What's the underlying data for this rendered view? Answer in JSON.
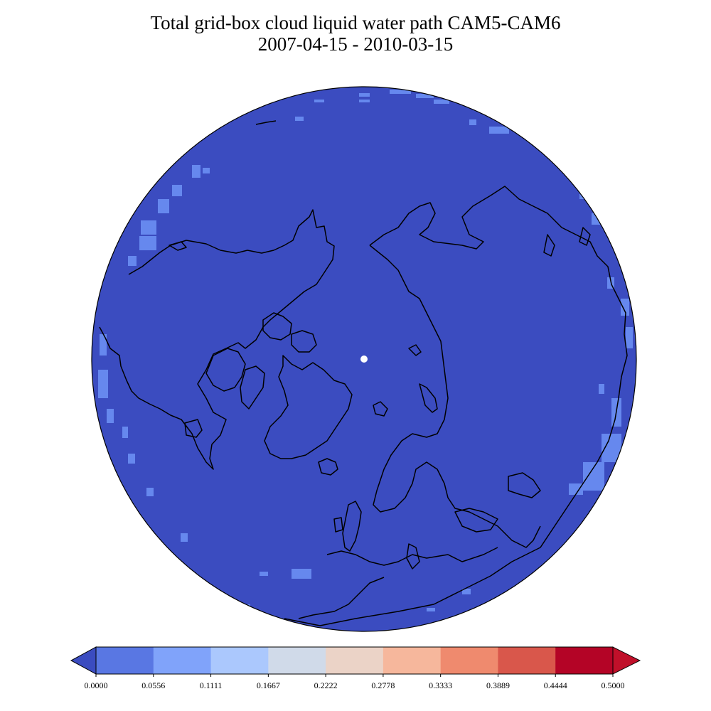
{
  "title": {
    "line1": "Total grid-box cloud liquid water path CAM5-CAM6",
    "line2": "2007-04-15 - 2010-03-15"
  },
  "map": {
    "projection": "north-polar-orthographic",
    "fill_color": "#3b4cc0",
    "accent_color": "#6688ee",
    "pole_marker_color": "#ffffff",
    "coastline_color": "#000000"
  },
  "colorbar": {
    "ticks": [
      "0.0000",
      "0.0556",
      "0.1111",
      "0.1667",
      "0.2222",
      "0.2778",
      "0.3333",
      "0.3889",
      "0.4444",
      "0.5000"
    ],
    "under_color": "#3b4cc0",
    "over_color": "#c0102a",
    "colors": [
      "#5977e3",
      "#80a3fa",
      "#abc8fd",
      "#d0dae9",
      "#ebd3c7",
      "#f6b79c",
      "#ef8a6e",
      "#d9574b",
      "#b40426"
    ],
    "extend": "both"
  }
}
